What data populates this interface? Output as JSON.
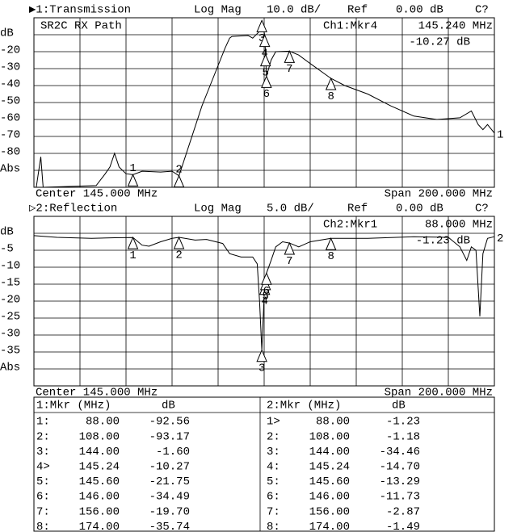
{
  "chart_data": [
    {
      "type": "line",
      "header": {
        "channel": "▶1:Transmission",
        "format": "Log Mag",
        "scale": "10.0 dB/",
        "ref_word": "Ref",
        "ref": "0.00 dB",
        "cal": "C?"
      },
      "title": "SR2C RX Path",
      "marker_readout": {
        "name": "Ch1:Mkr4",
        "x": "145.240 MHz",
        "y": "-10.27 dB"
      },
      "center": "Center 145.000 MHz",
      "span": "Span 200.000 MHz",
      "xlim": [
        45,
        245
      ],
      "xticks": [
        65,
        85,
        105,
        125,
        145,
        165,
        185,
        205,
        225
      ],
      "ylim": [
        -100,
        0
      ],
      "yticks": [
        {
          "value": -10,
          "label": "dB"
        },
        -20,
        -30,
        -40,
        -50,
        -60,
        -70,
        -80,
        {
          "value": -90,
          "label": "Abs"
        }
      ],
      "series": [
        {
          "name": "1",
          "color": "#000000",
          "x": [
            45,
            46,
            48,
            49,
            72,
            76,
            78,
            80,
            82,
            85,
            88,
            92,
            100,
            105,
            108,
            118,
            128,
            130,
            131,
            138,
            140,
            143,
            144,
            145.24,
            145.6,
            146,
            148,
            150,
            156,
            160,
            165,
            174,
            180,
            190,
            200,
            210,
            220,
            230,
            235,
            238,
            240,
            242,
            245
          ],
          "values": [
            -100,
            -100,
            -82,
            -100,
            -99,
            -92,
            -88,
            -80,
            -88,
            -92,
            -92.56,
            -90.5,
            -91,
            -90.5,
            -93.17,
            -52,
            -18,
            -12,
            -11,
            -10.5,
            -12,
            -8,
            -1.6,
            -10.27,
            -21.75,
            -34.49,
            -25,
            -20,
            -19.7,
            -22,
            -27,
            -35.74,
            -40,
            -45,
            -52,
            -58,
            -60,
            -59,
            -55,
            -63,
            -66,
            -63,
            -68
          ]
        }
      ],
      "markers": {
        "labels": [
          "1",
          "2",
          "3",
          "4",
          "5",
          "6",
          "7",
          "8"
        ],
        "x": [
          88,
          108,
          144,
          145.24,
          145.6,
          146,
          156,
          174
        ],
        "values": [
          -92.56,
          -93.17,
          -1.6,
          -10.27,
          -21.75,
          -34.49,
          -19.7,
          -35.74
        ]
      }
    },
    {
      "type": "line",
      "header": {
        "channel": "▷2:Reflection",
        "format": "Log Mag",
        "scale": "5.0 dB/",
        "ref_word": "Ref",
        "ref": "0.00 dB",
        "cal": "C?"
      },
      "marker_readout": {
        "name": "Ch2:Mkr1",
        "x": "88.000 MHz",
        "y": "-1.23 dB"
      },
      "center": "Center 145.000 MHz",
      "span": "Span 200.000 MHz",
      "xlim": [
        45,
        245
      ],
      "xticks": [
        65,
        85,
        105,
        125,
        145,
        165,
        185,
        205,
        225
      ],
      "ylim": [
        -45,
        5
      ],
      "yticks": [
        {
          "value": 0,
          "label": "dB"
        },
        -5,
        -10,
        -15,
        -20,
        -25,
        -30,
        -35,
        {
          "value": -40,
          "label": "Abs"
        }
      ],
      "series": [
        {
          "name": "2",
          "color": "#000000",
          "x": [
            45,
            55,
            70,
            80,
            88,
            92,
            95,
            100,
            105,
            108,
            115,
            120,
            127,
            130,
            135,
            140,
            142,
            143,
            144,
            145.24,
            145.6,
            146,
            148,
            150,
            153,
            156,
            160,
            165,
            174,
            190,
            210,
            225,
            230,
            233,
            235,
            237,
            238.7,
            240,
            242,
            245
          ],
          "values": [
            -0.7,
            -1.2,
            -1.5,
            -1.3,
            -1.23,
            -3.5,
            -3.8,
            -2.5,
            -1.5,
            -1.18,
            -2,
            -1.8,
            -3,
            -6,
            -7,
            -7,
            -9,
            -20,
            -34.46,
            -14.7,
            -13.29,
            -11.73,
            -8,
            -4,
            -2.5,
            -2.87,
            -4,
            -2.5,
            -1.49,
            -1.5,
            -1,
            -1.2,
            -4,
            -8,
            -4,
            -5,
            -24.5,
            -6,
            -1.5,
            -1
          ]
        }
      ],
      "markers": {
        "labels": [
          "1",
          "2",
          "3",
          "4",
          "5",
          "6",
          "7",
          "8"
        ],
        "x": [
          88,
          108,
          144,
          145.24,
          145.6,
          146,
          156,
          174
        ],
        "values": [
          -1.23,
          -1.18,
          -34.46,
          -14.7,
          -13.29,
          -11.73,
          -2.87,
          -1.49
        ]
      }
    }
  ],
  "marker_table": [
    {
      "header": [
        "1:Mkr (MHz)",
        "dB"
      ],
      "rows": [
        [
          "1:",
          "88.00",
          "-92.56"
        ],
        [
          "2:",
          "108.00",
          "-93.17"
        ],
        [
          "3:",
          "144.00",
          "-1.60"
        ],
        [
          "4>",
          "145.24",
          "-10.27"
        ],
        [
          "5:",
          "145.60",
          "-21.75"
        ],
        [
          "6:",
          "146.00",
          "-34.49"
        ],
        [
          "7:",
          "156.00",
          "-19.70"
        ],
        [
          "8:",
          "174.00",
          "-35.74"
        ]
      ]
    },
    {
      "header": [
        "2:Mkr (MHz)",
        "dB"
      ],
      "rows": [
        [
          "1>",
          "88.00",
          "-1.23"
        ],
        [
          "2:",
          "108.00",
          "-1.18"
        ],
        [
          "3:",
          "144.00",
          "-34.46"
        ],
        [
          "4:",
          "145.24",
          "-14.70"
        ],
        [
          "5:",
          "145.60",
          "-13.29"
        ],
        [
          "6:",
          "146.00",
          "-11.73"
        ],
        [
          "7:",
          "156.00",
          "-2.87"
        ],
        [
          "8:",
          "174.00",
          "-1.49"
        ]
      ]
    }
  ]
}
